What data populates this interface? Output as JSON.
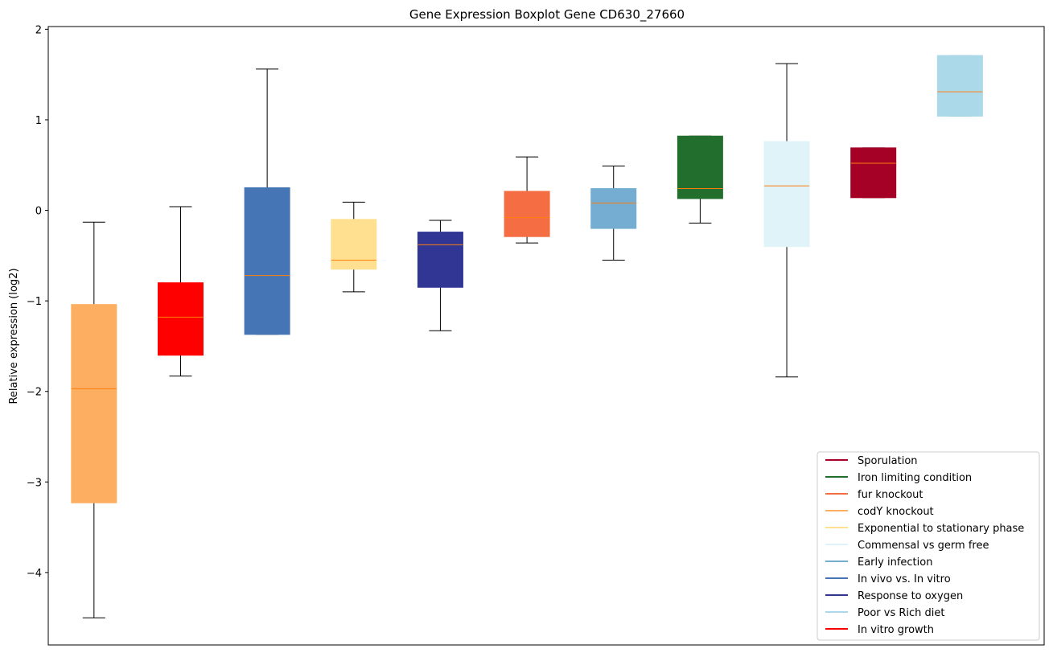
{
  "chart_data": {
    "type": "boxplot",
    "title": "Gene Expression Boxplot Gene CD630_27660",
    "xlabel": "",
    "ylabel": "Relative expression (log2)",
    "ylim": [
      -4.8,
      2.03
    ],
    "yticks": [
      2,
      1,
      0,
      -1,
      -2,
      -3,
      -4
    ],
    "ytick_labels": [
      "2",
      "1",
      "0",
      "−1",
      "−2",
      "−3",
      "−4"
    ],
    "median_color": "#ff7f0e",
    "boxes": [
      {
        "group": "codY knockout",
        "color": "#fdae61",
        "whisker_low": -4.5,
        "q1": -3.23,
        "median": -1.97,
        "q3": -1.04,
        "whisker_high": -0.13
      },
      {
        "group": "In vitro growth",
        "color": "#ff0000",
        "whisker_low": -1.83,
        "q1": -1.6,
        "median": -1.18,
        "q3": -0.8,
        "whisker_high": 0.04
      },
      {
        "group": "In vivo vs. In vitro",
        "color": "#4575b4",
        "whisker_low": -1.37,
        "q1": -1.37,
        "median": -0.72,
        "q3": 0.25,
        "whisker_high": 1.56
      },
      {
        "group": "Exponential to stationary phase",
        "color": "#fee090",
        "whisker_low": -0.9,
        "q1": -0.65,
        "median": -0.55,
        "q3": -0.1,
        "whisker_high": 0.09
      },
      {
        "group": "Response to oxygen",
        "color": "#313695",
        "whisker_low": -1.33,
        "q1": -0.85,
        "median": -0.38,
        "q3": -0.24,
        "whisker_high": -0.11
      },
      {
        "group": "fur knockout",
        "color": "#f46d43",
        "whisker_low": -0.36,
        "q1": -0.29,
        "median": -0.08,
        "q3": 0.21,
        "whisker_high": 0.59
      },
      {
        "group": "Early infection",
        "color": "#74add1",
        "whisker_low": -0.55,
        "q1": -0.2,
        "median": 0.08,
        "q3": 0.24,
        "whisker_high": 0.49
      },
      {
        "group": "Iron limiting condition",
        "color": "#226e2d",
        "whisker_low": -0.14,
        "q1": 0.13,
        "median": 0.24,
        "q3": 0.82,
        "whisker_high": 0.82
      },
      {
        "group": "Commensal vs germ free",
        "color": "#e0f3f8",
        "whisker_low": -1.84,
        "q1": -0.4,
        "median": 0.27,
        "q3": 0.76,
        "whisker_high": 1.62
      },
      {
        "group": "Sporulation",
        "color": "#a50026",
        "whisker_low": 0.14,
        "q1": 0.14,
        "median": 0.52,
        "q3": 0.69,
        "whisker_high": 0.69
      },
      {
        "group": "Poor vs Rich diet",
        "color": "#abd9e9",
        "whisker_low": 1.04,
        "q1": 1.04,
        "median": 1.31,
        "q3": 1.71,
        "whisker_high": 1.71
      }
    ],
    "legend": {
      "placement": "lower-right",
      "entries": [
        {
          "label": "Sporulation",
          "color": "#a50026"
        },
        {
          "label": "Iron limiting condition",
          "color": "#226e2d"
        },
        {
          "label": "fur knockout",
          "color": "#f46d43"
        },
        {
          "label": "codY knockout",
          "color": "#fdae61"
        },
        {
          "label": "Exponential to stationary phase",
          "color": "#fee090"
        },
        {
          "label": "Commensal vs germ free",
          "color": "#e0f3f8"
        },
        {
          "label": "Early infection",
          "color": "#74add1"
        },
        {
          "label": "In vivo vs. In vitro",
          "color": "#4575b4"
        },
        {
          "label": "Response to oxygen",
          "color": "#313695"
        },
        {
          "label": "Poor vs Rich diet",
          "color": "#abd9e9"
        },
        {
          "label": "In vitro growth",
          "color": "#ff0000"
        }
      ]
    }
  }
}
